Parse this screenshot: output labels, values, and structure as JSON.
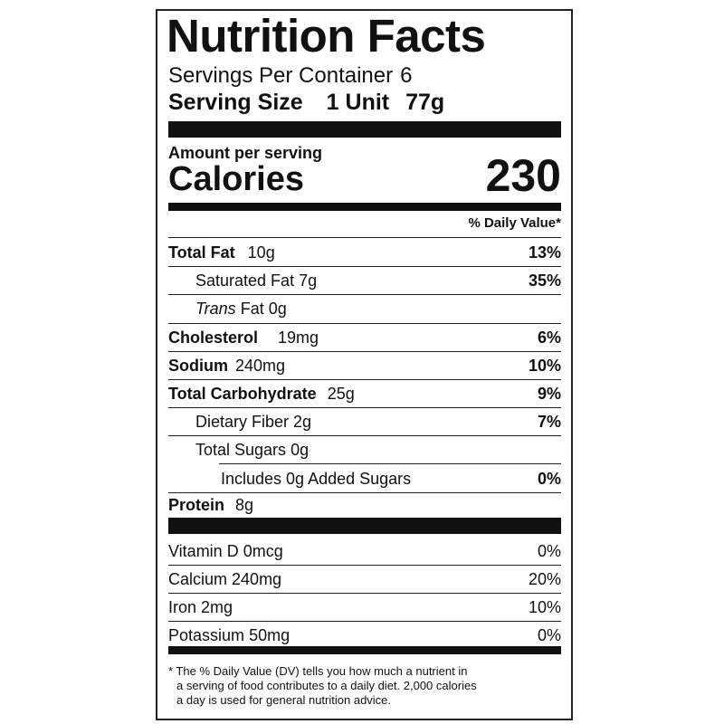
{
  "title": "Nutrition Facts",
  "servings": {
    "label": "Servings Per Container",
    "value": "6"
  },
  "serving_size": {
    "label": "Serving Size",
    "amount": "1 Unit",
    "weight": "77g"
  },
  "amount_per_serving": "Amount per serving",
  "calories": {
    "label": "Calories",
    "value": "230"
  },
  "daily_value_header": "% Daily Value*",
  "nutrients": [
    {
      "name": "Total Fat",
      "amount": "10g",
      "dv": "13%"
    },
    {
      "name": "Saturated Fat",
      "amount": "7g",
      "dv": "35%"
    },
    {
      "name": "Trans",
      "amount": "Fat 0g"
    },
    {
      "name": "Cholesterol",
      "amount": "19mg",
      "dv": "6%"
    },
    {
      "name": "Sodium",
      "amount": "240mg",
      "dv": "10%"
    },
    {
      "name": "Total Carbohydrate",
      "amount": "25g",
      "dv": "9%"
    },
    {
      "name": "Dietary Fiber",
      "amount": "2g",
      "dv": "7%"
    },
    {
      "name": "Total Sugars",
      "amount": "0g"
    },
    {
      "name": "Includes 0g Added Sugars",
      "dv": "0%"
    },
    {
      "name": "Protein",
      "amount": "8g"
    }
  ],
  "vitamins": [
    {
      "name": "Vitamin D",
      "amount": "0mcg",
      "dv": "0%"
    },
    {
      "name": "Calcium",
      "amount": "240mg",
      "dv": "20%"
    },
    {
      "name": "Iron",
      "amount": "2mg",
      "dv": "10%"
    },
    {
      "name": "Potassium",
      "amount": "50mg",
      "dv": "0%"
    }
  ],
  "footnote": [
    "* The % Daily Value (DV) tells you how much a nutrient in",
    "a serving of food contributes to a daily diet. 2,000 calories",
    "a day is used for general nutrition advice."
  ]
}
